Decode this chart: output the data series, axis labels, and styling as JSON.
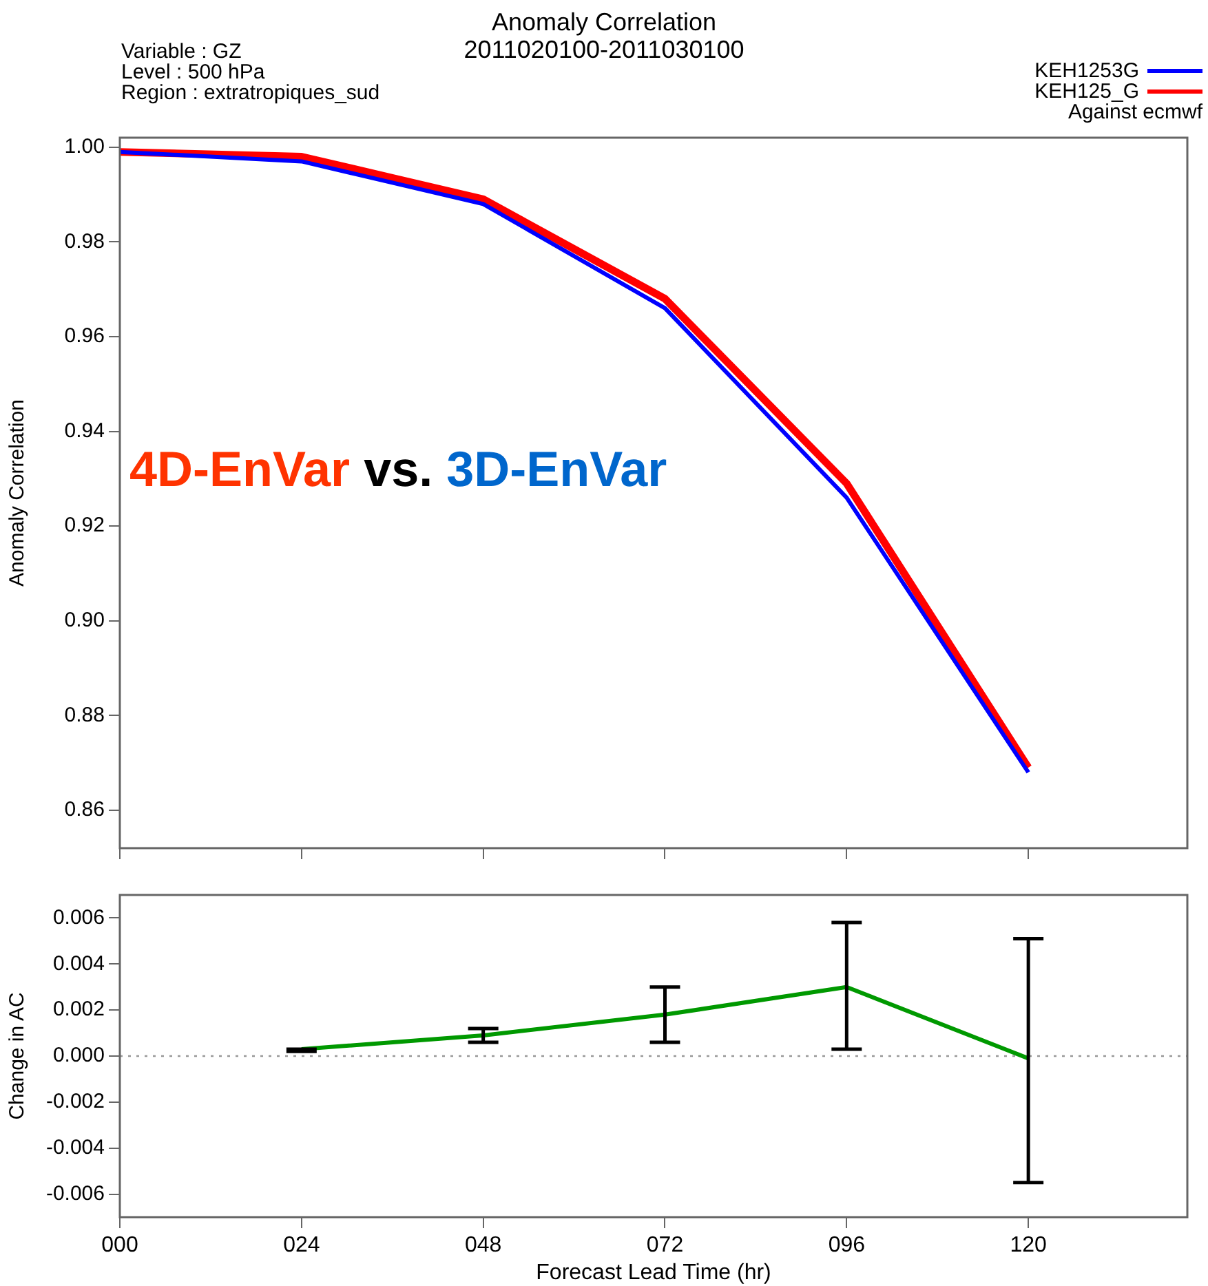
{
  "chart_data": [
    {
      "type": "line",
      "title": "Anomaly Correlation",
      "subtitle": "2011020100-2011030100",
      "ylabel": "Anomaly Correlation",
      "annotations": [
        "Variable : GZ",
        "Level : 500 hPa",
        "Region : extratropiques_sud",
        "Against ecmwf",
        "4D-EnVar vs. 3D-EnVar"
      ],
      "x": [
        0,
        24,
        48,
        72,
        96,
        120
      ],
      "series": [
        {
          "name": "KEH1253G",
          "color": "#0000ff",
          "values": [
            0.999,
            0.997,
            0.988,
            0.966,
            0.926,
            0.868
          ]
        },
        {
          "name": "KEH125_G",
          "color": "#ff0000",
          "values": [
            0.999,
            0.998,
            0.989,
            0.968,
            0.929,
            0.869
          ]
        }
      ],
      "xlim": [
        0,
        141
      ],
      "xticks": [
        {
          "value": 0,
          "label": null
        },
        {
          "value": 24,
          "label": null
        },
        {
          "value": 48,
          "label": null
        },
        {
          "value": 72,
          "label": null
        },
        {
          "value": 96,
          "label": null
        },
        {
          "value": 120,
          "label": null
        }
      ],
      "ylim": [
        0.852,
        1.002
      ],
      "yticks": [
        0.86,
        0.88,
        {
          "value": 0.9,
          "label": "0.90"
        },
        0.92,
        0.94,
        0.96,
        0.98,
        {
          "value": 1,
          "label": "1.00"
        }
      ],
      "tick_labels": "y",
      "legend": "top right",
      "grid": false,
      "marker": "none",
      "line_style": "solid"
    },
    {
      "type": "line",
      "xlabel": "Forecast Lead Time (hr)",
      "ylabel": "Change in AC",
      "x": [
        24,
        48,
        72,
        96,
        120
      ],
      "values": [
        0.0003,
        0.0009,
        0.0018,
        0.003,
        -0.0001
      ],
      "errors": [
        [
          0.0002,
          0.0003
        ],
        [
          0.0006,
          0.0012
        ],
        [
          0.0006,
          0.003
        ],
        [
          0.0003,
          0.0058
        ],
        [
          -0.0055,
          0.0051
        ]
      ],
      "color": "#009900",
      "ref_lines": [
        {
          "axis": "y",
          "value": 0,
          "color": "#999999",
          "line_style": "dotted"
        }
      ],
      "xlim": [
        0,
        141
      ],
      "xticks": [
        {
          "value": 0,
          "label": "000"
        },
        {
          "value": 24,
          "label": "024"
        },
        {
          "value": 48,
          "label": "048"
        },
        {
          "value": 72,
          "label": "072"
        },
        {
          "value": 96,
          "label": "096"
        },
        {
          "value": 120,
          "label": "120"
        }
      ],
      "ylim": [
        -0.007,
        0.007
      ],
      "yticks": [
        -0.006,
        -0.004,
        -0.002,
        {
          "value": 0,
          "label": "0.000"
        },
        0.002,
        0.004,
        0.006
      ],
      "legend": false,
      "grid": false,
      "marker": "none",
      "line_style": "solid"
    }
  ]
}
